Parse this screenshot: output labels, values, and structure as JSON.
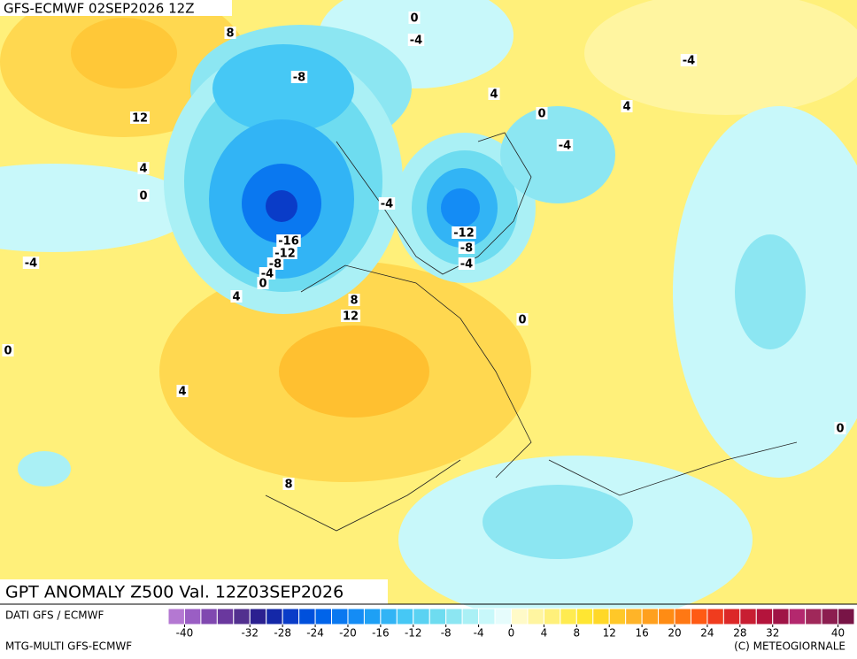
{
  "header": {
    "title": "GFS-ECMWF 02SEP2026 12Z"
  },
  "map": {
    "contour_labels": [
      0,
      8,
      -4,
      -8,
      -4,
      4,
      4,
      0,
      12,
      -4,
      4,
      0,
      -4,
      -16,
      -12,
      -8,
      -4,
      0,
      -12,
      -8,
      -4,
      -4,
      4,
      8,
      12,
      0,
      0,
      4,
      8,
      0
    ]
  },
  "footer": {
    "title": "GPT ANOMALY Z500 Val. 12Z03SEP2026",
    "source": "DATI GFS / ECMWF",
    "model": "MTG-MULTI GFS-ECMWF",
    "copyright": "(C) METEOGIORNALE"
  },
  "colorbar": {
    "range": [
      -42,
      42
    ],
    "ticks": [
      -40,
      -32,
      -28,
      -24,
      -20,
      -16,
      -12,
      -8,
      -4,
      0,
      4,
      8,
      12,
      16,
      20,
      24,
      28,
      32,
      40
    ],
    "colors": [
      "#b478d2",
      "#9a5ec4",
      "#8048b0",
      "#6a389e",
      "#52308f",
      "#2b2090",
      "#1428a8",
      "#0a3cc8",
      "#0050dc",
      "#0064ea",
      "#0a78f0",
      "#148cf5",
      "#1ea0f5",
      "#32b4f5",
      "#46c8f5",
      "#5ad2f2",
      "#6edcf0",
      "#8ce6f2",
      "#aaf0f5",
      "#c8f8fa",
      "#e6fcfc",
      "#fffac8",
      "#fff5a0",
      "#fff07a",
      "#ffeb50",
      "#ffe632",
      "#ffd828",
      "#ffc828",
      "#ffb428",
      "#ffa01e",
      "#ff8c14",
      "#ff7814",
      "#ff5a14",
      "#f03c1e",
      "#dc2828",
      "#c81e32",
      "#b4143c",
      "#a01446",
      "#b4286e",
      "#a0285a",
      "#8c1e50",
      "#781446"
    ]
  }
}
